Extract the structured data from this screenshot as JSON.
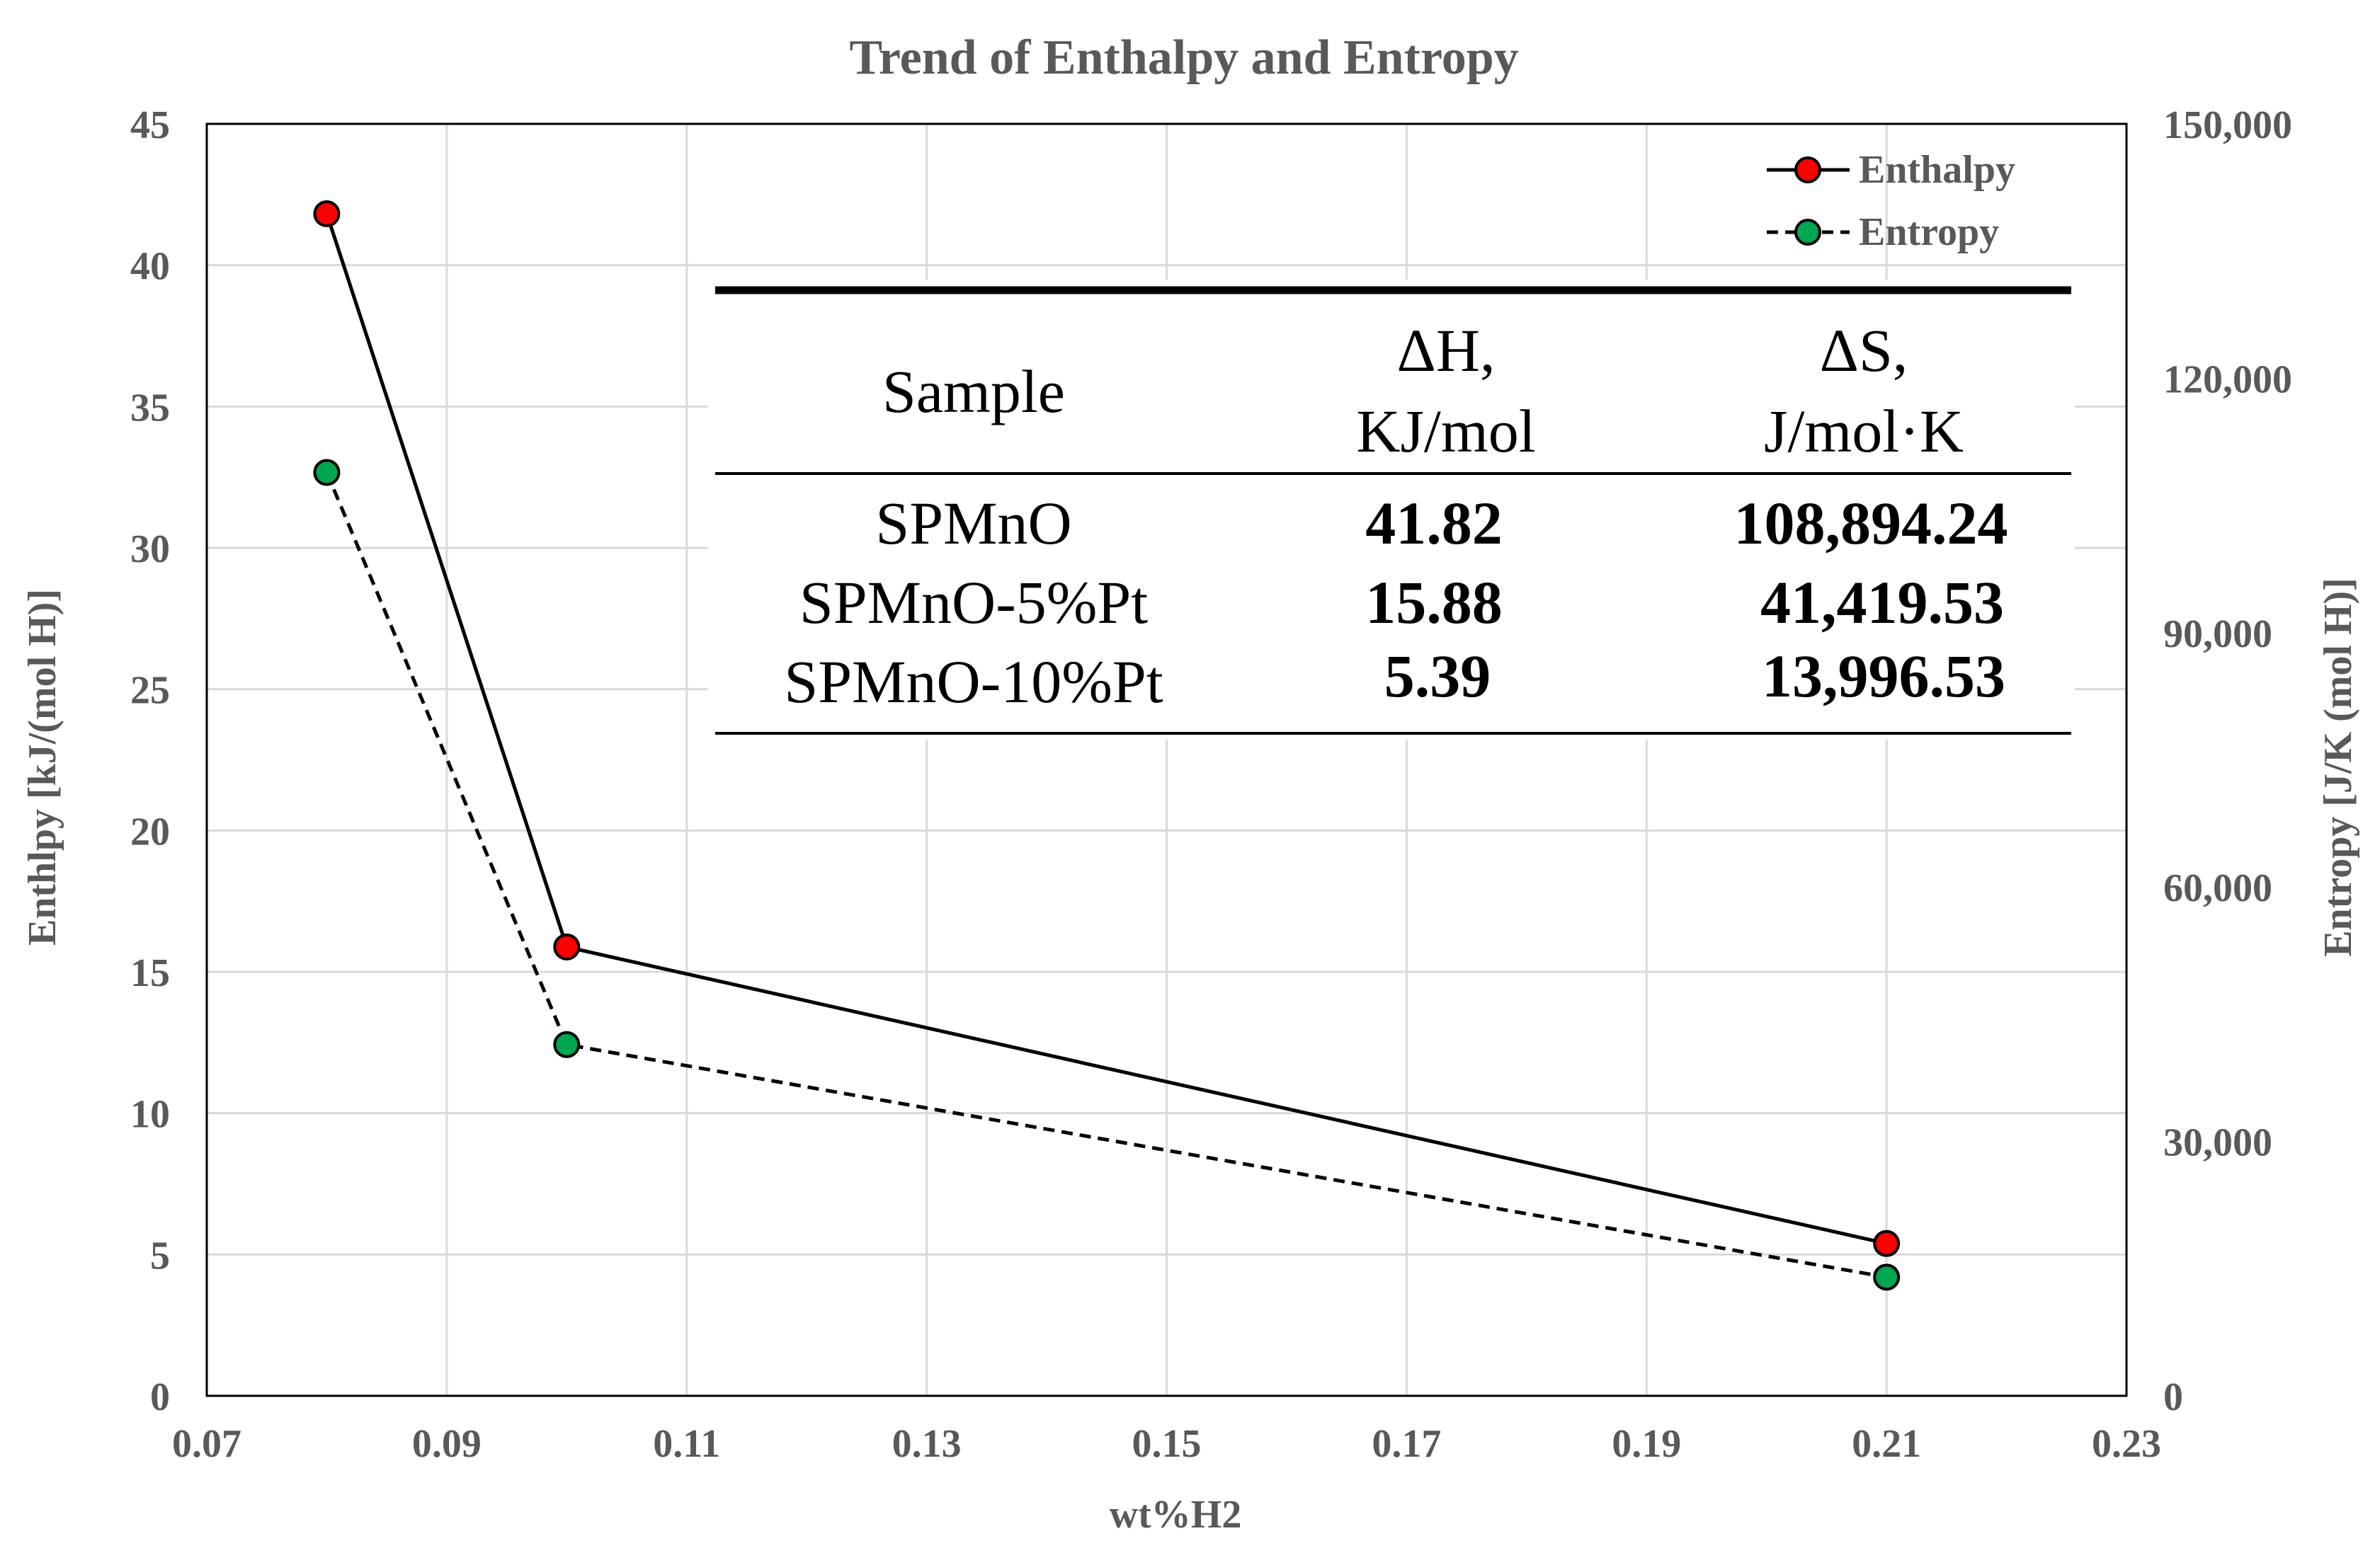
{
  "chart_data": {
    "type": "line",
    "title": "Trend of Enthalpy and Entropy",
    "xlabel": "wt%H2",
    "ylabel": "Enthlpy [kJ/(mol H)]",
    "y2label": "Entropy [J/K (mol H)]",
    "xlim": [
      0.07,
      0.23
    ],
    "ylim": [
      0,
      45
    ],
    "y2lim": [
      0,
      150000
    ],
    "x_ticks": [
      "0.07",
      "0.09",
      "0.11",
      "0.13",
      "0.15",
      "0.17",
      "0.19",
      "0.21",
      "0.23"
    ],
    "x_tick_values": [
      0.07,
      0.09,
      0.11,
      0.13,
      0.15,
      0.17,
      0.19,
      0.21,
      0.23
    ],
    "y_ticks": [
      "0",
      "5",
      "10",
      "15",
      "20",
      "25",
      "30",
      "35",
      "40",
      "45"
    ],
    "y_tick_values": [
      0,
      5,
      10,
      15,
      20,
      25,
      30,
      35,
      40,
      45
    ],
    "y2_ticks": [
      "0",
      "30,000",
      "60,000",
      "90,000",
      "120,000",
      "150,000"
    ],
    "y2_tick_values": [
      0,
      30000,
      60000,
      90000,
      120000,
      150000
    ],
    "grid": true,
    "legend_position": "top-right",
    "series": [
      {
        "name": "Enthalpy",
        "axis": "left",
        "color": "#ff0000",
        "line_style": "solid",
        "x": [
          0.08,
          0.1,
          0.21
        ],
        "values": [
          41.82,
          15.88,
          5.39
        ]
      },
      {
        "name": "Entropy",
        "axis": "right",
        "color": "#00a650",
        "line_style": "dashed",
        "x": [
          0.08,
          0.1,
          0.21
        ],
        "values": [
          108894.24,
          41419.53,
          13996.53
        ]
      }
    ],
    "table": {
      "headers": [
        [
          "Sample"
        ],
        [
          "ΔH,",
          "KJ/mol"
        ],
        [
          "ΔS,",
          "J/mol·K"
        ]
      ],
      "rows": [
        [
          "SPMnO",
          "41.82",
          "108,894.24"
        ],
        [
          "SPMnO-5%Pt",
          "15.88",
          "41,419.53"
        ],
        [
          "SPMnO-10%Pt",
          "5.39",
          "13,996.53"
        ]
      ]
    }
  },
  "colors": {
    "axis_text": "#595959",
    "grid": "#d9d9d9",
    "line": "#000000"
  }
}
